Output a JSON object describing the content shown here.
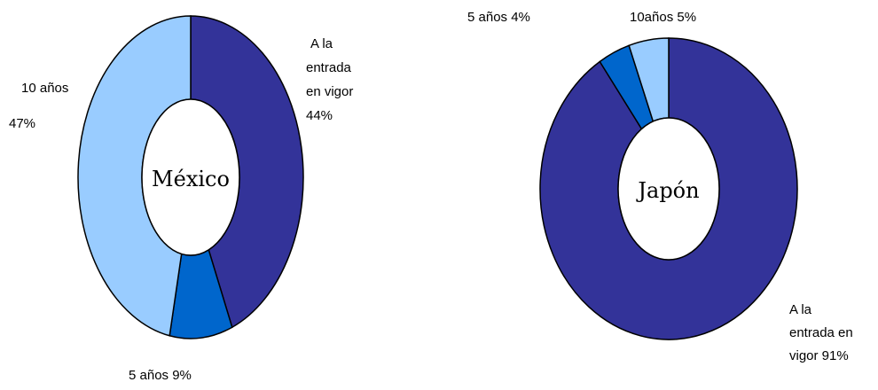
{
  "chart_data": [
    {
      "type": "donut",
      "title": "México",
      "slices": [
        {
          "label_lines": [
            "A la",
            "entrada",
            "en vigor",
            "44%"
          ],
          "value": 44,
          "color": "#333399"
        },
        {
          "label_lines": [
            "5 años  9%"
          ],
          "value": 9,
          "color": "#0066cc"
        },
        {
          "label_lines": [
            "10 años",
            "47%"
          ],
          "value": 47,
          "color": "#99ccff"
        }
      ]
    },
    {
      "type": "donut",
      "title": "Japón",
      "slices": [
        {
          "label_lines": [
            "A la",
            "entrada en",
            "vigor 91%"
          ],
          "value": 91,
          "color": "#333399"
        },
        {
          "label_lines": [
            "5 años 4%"
          ],
          "value": 4,
          "color": "#0066cc"
        },
        {
          "label_lines": [
            "10años 5%"
          ],
          "value": 5,
          "color": "#99ccff"
        }
      ]
    }
  ]
}
